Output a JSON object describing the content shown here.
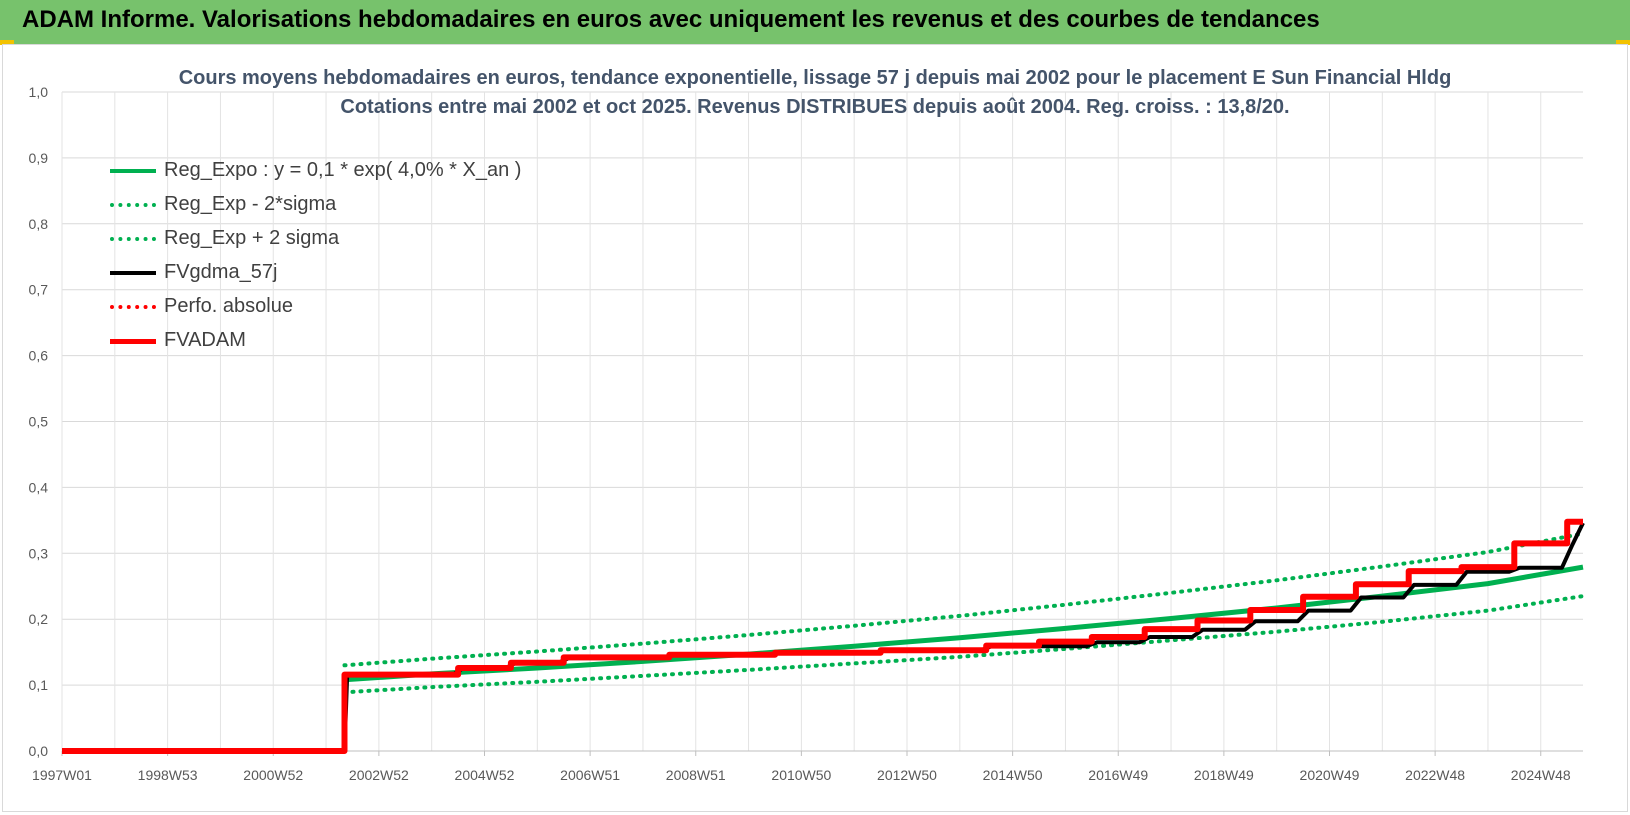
{
  "banner": {
    "title": "ADAM Informe. Valorisations hebdomadaires en euros avec uniquement les revenus et des courbes de tendances"
  },
  "chart_data": {
    "type": "line",
    "title_line1": "Cours moyens hebdomadaires en euros, tendance exponentielle, lissage 57 j depuis mai 2002 pour le placement E Sun Financial Hldg",
    "title_line2": "Cotations entre mai 2002 et oct 2025.  Revenus DISTRIBUES depuis août 2004. Reg. croiss. : 13,8/20.",
    "xlabel": "",
    "ylabel": "",
    "x_range": [
      1997.0,
      2025.8
    ],
    "ylim": [
      0,
      1.0
    ],
    "y_ticks": [
      "0,0",
      "0,1",
      "0,2",
      "0,3",
      "0,4",
      "0,5",
      "0,6",
      "0,7",
      "0,8",
      "0,9",
      "1,0"
    ],
    "x_ticks": [
      {
        "label": "1997W01",
        "x": 1997.0
      },
      {
        "label": "1998W53",
        "x": 1999.0
      },
      {
        "label": "2000W52",
        "x": 2001.0
      },
      {
        "label": "2002W52",
        "x": 2003.0
      },
      {
        "label": "2004W52",
        "x": 2005.0
      },
      {
        "label": "2006W51",
        "x": 2007.0
      },
      {
        "label": "2008W51",
        "x": 2009.0
      },
      {
        "label": "2010W50",
        "x": 2011.0
      },
      {
        "label": "2012W50",
        "x": 2013.0
      },
      {
        "label": "2014W50",
        "x": 2015.0
      },
      {
        "label": "2016W49",
        "x": 2017.0
      },
      {
        "label": "2018W49",
        "x": 2019.0
      },
      {
        "label": "2020W49",
        "x": 2021.0
      },
      {
        "label": "2022W48",
        "x": 2023.0
      },
      {
        "label": "2024W48",
        "x": 2025.0
      }
    ],
    "grid": true,
    "legend_position": "top-left",
    "series": [
      {
        "name": "Reg_Expo : y = 0,1 * exp( 4,0% *  X_an )",
        "color": "#00b050",
        "style": "solid",
        "width": 5,
        "x": [
          2002.35,
          2004,
          2006,
          2008,
          2010,
          2012,
          2014,
          2016,
          2018,
          2020,
          2022,
          2024,
          2025.8
        ],
        "y": [
          0.108,
          0.117,
          0.126,
          0.136,
          0.147,
          0.159,
          0.172,
          0.186,
          0.201,
          0.217,
          0.235,
          0.254,
          0.279
        ]
      },
      {
        "name": "Reg_Exp - 2*sigma",
        "color": "#00b050",
        "style": "dotted",
        "width": 4,
        "x": [
          2002.35,
          2004,
          2006,
          2008,
          2010,
          2012,
          2014,
          2016,
          2018,
          2020,
          2022,
          2024,
          2025.8
        ],
        "y": [
          0.089,
          0.097,
          0.105,
          0.114,
          0.123,
          0.133,
          0.143,
          0.155,
          0.168,
          0.181,
          0.196,
          0.213,
          0.235
        ]
      },
      {
        "name": "Reg_Exp + 2 sigma",
        "color": "#00b050",
        "style": "dotted",
        "width": 4,
        "x": [
          2002.35,
          2004,
          2006,
          2008,
          2010,
          2012,
          2014,
          2016,
          2018,
          2020,
          2022,
          2024,
          2025.8
        ],
        "y": [
          0.13,
          0.14,
          0.151,
          0.163,
          0.176,
          0.19,
          0.205,
          0.222,
          0.24,
          0.259,
          0.28,
          0.302,
          0.33
        ]
      },
      {
        "name": "FVgdma_57j",
        "color": "#000000",
        "style": "solid",
        "width": 4,
        "x": [
          1997.0,
          2002.35,
          2002.4,
          2004.4,
          2004.6,
          2005.4,
          2005.6,
          2006.4,
          2006.6,
          2008.4,
          2008.6,
          2010.4,
          2010.6,
          2012.4,
          2012.6,
          2014.4,
          2014.6,
          2016.4,
          2016.6,
          2017.4,
          2017.6,
          2018.4,
          2018.6,
          2019.4,
          2019.6,
          2020.4,
          2020.6,
          2021.4,
          2021.6,
          2022.4,
          2022.6,
          2023.4,
          2023.6,
          2024.4,
          2024.6,
          2025.4,
          2025.6,
          2025.8
        ],
        "y": [
          0.0,
          0.0,
          0.116,
          0.116,
          0.126,
          0.126,
          0.134,
          0.134,
          0.141,
          0.141,
          0.146,
          0.146,
          0.149,
          0.149,
          0.153,
          0.153,
          0.159,
          0.159,
          0.165,
          0.165,
          0.173,
          0.173,
          0.184,
          0.184,
          0.197,
          0.197,
          0.213,
          0.213,
          0.233,
          0.233,
          0.252,
          0.252,
          0.272,
          0.272,
          0.278,
          0.278,
          0.313,
          0.346
        ]
      },
      {
        "name": "Perfo. absolue",
        "color": "#ff0000",
        "style": "dotted",
        "width": 3,
        "x": [],
        "y": []
      },
      {
        "name": "FVADAM",
        "color": "#ff0000",
        "style": "solid",
        "width": 6,
        "x": [
          1997.0,
          2002.35,
          2002.35,
          2004.5,
          2004.5,
          2005.5,
          2005.5,
          2006.5,
          2006.5,
          2008.5,
          2008.5,
          2010.5,
          2010.5,
          2012.5,
          2012.5,
          2014.5,
          2014.5,
          2015.5,
          2015.5,
          2016.5,
          2016.5,
          2017.5,
          2017.5,
          2018.5,
          2018.5,
          2019.5,
          2019.5,
          2020.5,
          2020.5,
          2021.5,
          2021.5,
          2022.5,
          2022.5,
          2023.5,
          2023.5,
          2024.5,
          2024.5,
          2025.5,
          2025.5,
          2025.8
        ],
        "y": [
          0.0,
          0.0,
          0.116,
          0.116,
          0.126,
          0.126,
          0.134,
          0.134,
          0.142,
          0.142,
          0.146,
          0.146,
          0.149,
          0.149,
          0.153,
          0.153,
          0.16,
          0.16,
          0.166,
          0.166,
          0.173,
          0.173,
          0.185,
          0.185,
          0.198,
          0.198,
          0.214,
          0.214,
          0.234,
          0.234,
          0.253,
          0.253,
          0.273,
          0.273,
          0.279,
          0.279,
          0.315,
          0.315,
          0.348,
          0.348
        ]
      }
    ]
  }
}
